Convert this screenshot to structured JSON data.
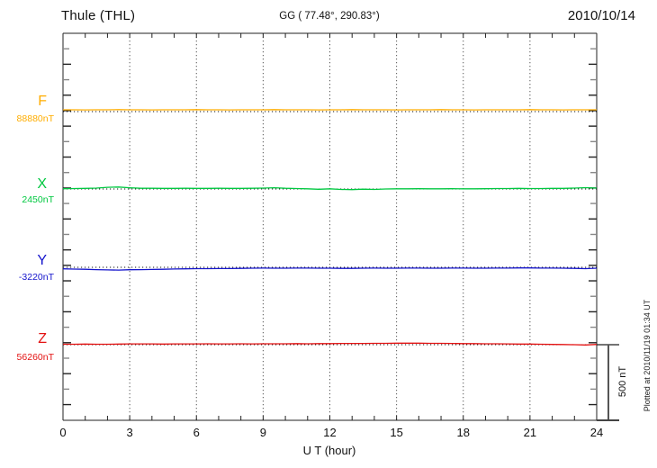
{
  "header": {
    "station": "Thule (THL)",
    "coords": "GG ( 77.48°, 290.83°)",
    "date": "2010/10/14"
  },
  "axis": {
    "xlabel": "U T (hour)",
    "ticks": [
      "0",
      "3",
      "6",
      "9",
      "12",
      "15",
      "18",
      "21",
      "24"
    ]
  },
  "scalebar": {
    "label": "500 nT",
    "nT": 500
  },
  "footer_note": "Plotted at 2010/11/19 01:34 UT",
  "colors": {
    "frame": "#222222",
    "grid": "#555555",
    "baseline": "#111111",
    "minor_tick": "#888888",
    "scalebar": "#555555"
  },
  "channels": [
    {
      "label": "F",
      "value_label": "88880nT",
      "reference_nT": 88880,
      "color": "#FFAD00"
    },
    {
      "label": "X",
      "value_label": "2450nT",
      "reference_nT": 2450,
      "color": "#00C840"
    },
    {
      "label": "Y",
      "value_label": "-3220nT",
      "reference_nT": -3220,
      "color": "#1414CC"
    },
    {
      "label": "Z",
      "value_label": "56260nT",
      "reference_nT": 56260,
      "color": "#E31212"
    }
  ],
  "chart_data": {
    "type": "line",
    "title": "Thule (THL) magnetogram 2010/10/14",
    "xlabel": "U T (hour)",
    "xlim": [
      0,
      24
    ],
    "grid": "vertical dotted lines every 3 hours; dotted baseline per channel",
    "legend_position": "left margin channel labels",
    "scale_bar_nT": 500,
    "x": [
      0,
      0.5,
      1,
      1.5,
      2,
      2.5,
      3,
      3.5,
      4,
      4.5,
      5,
      5.5,
      6,
      6.5,
      7,
      7.5,
      8,
      8.5,
      9,
      9.5,
      10,
      10.5,
      11,
      11.5,
      12,
      12.5,
      13,
      13.5,
      14,
      14.5,
      15,
      15.5,
      16,
      16.5,
      17,
      17.5,
      18,
      18.5,
      19,
      19.5,
      20,
      20.5,
      21,
      21.5,
      22,
      22.5,
      23,
      23.5,
      24
    ],
    "series": [
      {
        "name": "F",
        "reference_nT": 88880,
        "color": "#FFAD00",
        "values": [
          88892,
          88892,
          88891,
          88892,
          88892,
          88893,
          88892,
          88892,
          88891,
          88892,
          88892,
          88892,
          88893,
          88892,
          88892,
          88891,
          88892,
          88892,
          88892,
          88893,
          88892,
          88892,
          88892,
          88891,
          88892,
          88892,
          88893,
          88892,
          88892,
          88892,
          88891,
          88892,
          88892,
          88892,
          88893,
          88892,
          88892,
          88891,
          88892,
          88892,
          88892,
          88892,
          88893,
          88892,
          88892,
          88891,
          88892,
          88892,
          88892
        ]
      },
      {
        "name": "X",
        "reference_nT": 2450,
        "color": "#00C840",
        "values": [
          2452,
          2453,
          2454,
          2456,
          2461,
          2463,
          2458,
          2455,
          2455,
          2454,
          2454,
          2455,
          2454,
          2454,
          2455,
          2454,
          2454,
          2455,
          2456,
          2458,
          2455,
          2453,
          2451,
          2448,
          2451,
          2447,
          2446,
          2449,
          2447,
          2450,
          2451,
          2451,
          2452,
          2451,
          2451,
          2452,
          2451,
          2451,
          2452,
          2453,
          2453,
          2454,
          2453,
          2453,
          2454,
          2454,
          2456,
          2459,
          2456
        ]
      },
      {
        "name": "Y",
        "reference_nT": -3220,
        "color": "#1414CC",
        "values": [
          -3230,
          -3232,
          -3233,
          -3235,
          -3237,
          -3238,
          -3236,
          -3235,
          -3234,
          -3233,
          -3231,
          -3230,
          -3229,
          -3229,
          -3228,
          -3228,
          -3227,
          -3226,
          -3225,
          -3226,
          -3226,
          -3225,
          -3225,
          -3226,
          -3226,
          -3227,
          -3227,
          -3226,
          -3225,
          -3226,
          -3226,
          -3225,
          -3225,
          -3226,
          -3226,
          -3225,
          -3225,
          -3226,
          -3226,
          -3225,
          -3225,
          -3224,
          -3224,
          -3225,
          -3225,
          -3226,
          -3227,
          -3229,
          -3226
        ]
      },
      {
        "name": "Z",
        "reference_nT": 56260,
        "color": "#E31212",
        "values": [
          56263,
          56263,
          56264,
          56263,
          56263,
          56264,
          56265,
          56265,
          56265,
          56264,
          56265,
          56265,
          56265,
          56266,
          56265,
          56265,
          56266,
          56265,
          56266,
          56266,
          56266,
          56267,
          56266,
          56267,
          56267,
          56268,
          56268,
          56268,
          56269,
          56269,
          56270,
          56270,
          56270,
          56269,
          56269,
          56268,
          56267,
          56267,
          56266,
          56266,
          56265,
          56264,
          56264,
          56263,
          56262,
          56261,
          56260,
          56258,
          56262
        ]
      }
    ]
  }
}
